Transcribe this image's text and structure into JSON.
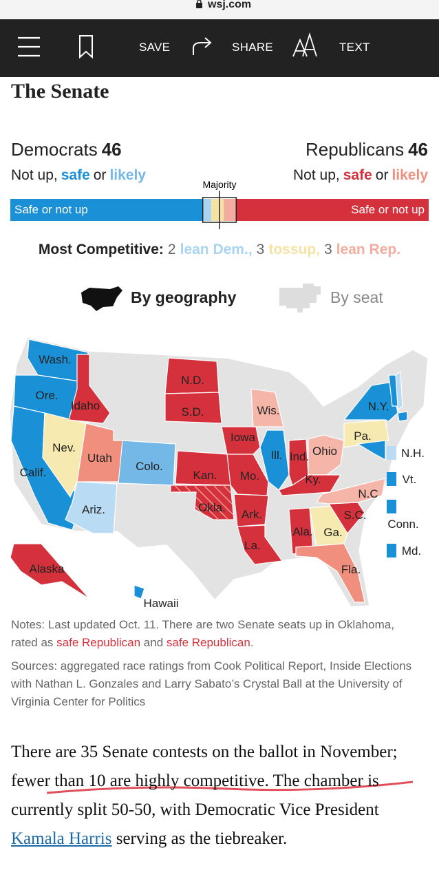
{
  "browser": {
    "url": "wsj.com"
  },
  "nav": {
    "items": [
      "SAVE",
      "SHARE",
      "TEXT"
    ]
  },
  "title": "The Senate",
  "header": {
    "democrats": {
      "name": "Democrats",
      "count": 46,
      "color": "#1a90d6",
      "status": [
        {
          "text": "Not up,"
        },
        {
          "text": "safe",
          "color": "#1a90d6"
        },
        {
          "text": "or"
        },
        {
          "text": "likely",
          "color": "#74b8e8"
        }
      ]
    },
    "republicans": {
      "name": "Republicans",
      "count": 46,
      "color": "#d4313c",
      "status": [
        {
          "text": "Not up,"
        },
        {
          "text": "safe",
          "color": "#d4313c"
        },
        {
          "text": "or"
        },
        {
          "text": "likely",
          "color": "#f08f7e"
        }
      ]
    }
  },
  "seat_bar": {
    "majority_label": "Majority",
    "left_label": "Safe or not up",
    "right_label": "Safe or not up"
  },
  "competitive": {
    "label": "Most Competitive:",
    "items": [
      {
        "count": 2,
        "text": "lean Dem.,",
        "color": "#a9d4f1"
      },
      {
        "count": 3,
        "text": "tossup,",
        "color": "#f4e3a2"
      },
      {
        "count": 3,
        "text": "lean Rep.",
        "color": "#f3ad9e"
      }
    ]
  },
  "view_toggle": {
    "options": [
      "By geography",
      "By seat"
    ],
    "selected": 0
  },
  "map": {
    "states": [
      {
        "label": "Wash.",
        "color": "#1a90d6"
      },
      {
        "label": "Ore.",
        "color": "#1a90d6"
      },
      {
        "label": "Calif.",
        "color": "#1a90d6"
      },
      {
        "label": "Nev.",
        "color": "#f7eab0"
      },
      {
        "label": "Idaho",
        "color": "#d4313c"
      },
      {
        "label": "Utah",
        "color": "#f08f7e"
      },
      {
        "label": "Ariz.",
        "color": "#b9dbf3"
      },
      {
        "label": "Colo.",
        "color": "#74b8e8"
      },
      {
        "label": "N.D.",
        "color": "#d4313c"
      },
      {
        "label": "S.D.",
        "color": "#d4313c"
      },
      {
        "label": "Kan.",
        "color": "#d4313c"
      },
      {
        "label": "Okla.",
        "color": "#d4313c",
        "hatched": true
      },
      {
        "label": "Iowa",
        "color": "#d4313c"
      },
      {
        "label": "Mo.",
        "color": "#d4313c"
      },
      {
        "label": "Ark.",
        "color": "#d4313c"
      },
      {
        "label": "La.",
        "color": "#d4313c"
      },
      {
        "label": "Ill.",
        "color": "#1a90d6"
      },
      {
        "label": "Wis.",
        "color": "#f5b5a8"
      },
      {
        "label": "Ind.",
        "color": "#d4313c"
      },
      {
        "label": "Ohio",
        "color": "#f5b5a8"
      },
      {
        "label": "Ky.",
        "color": "#d4313c"
      },
      {
        "label": "Ala.",
        "color": "#d4313c"
      },
      {
        "label": "Ga.",
        "color": "#f7eab0"
      },
      {
        "label": "S.C.",
        "color": "#d4313c"
      },
      {
        "label": "N.C",
        "color": "#f5b5a8"
      },
      {
        "label": "Fla.",
        "color": "#f08f7e"
      },
      {
        "label": "Pa.",
        "color": "#f7eab0"
      },
      {
        "label": "N.Y.",
        "color": "#1a90d6"
      },
      {
        "label": "N.H.",
        "color": "#b9dbf3"
      },
      {
        "label": "Vt.",
        "color": "#1a90d6"
      },
      {
        "label": "Conn.",
        "color": "#1a90d6"
      },
      {
        "label": "Md.",
        "color": "#1a90d6"
      },
      {
        "label": "Alaska",
        "color": "#d4313c"
      },
      {
        "label": "Hawaii",
        "color": "#1a90d6"
      }
    ]
  },
  "notes": {
    "parts": [
      {
        "text": "Notes: Last updated Oct. 11. There are two Senate seats up in Oklahoma, rated as "
      },
      {
        "text": "safe Republican",
        "color": "#d4313c"
      },
      {
        "text": " and "
      },
      {
        "text": "safe Republican",
        "color": "#d4313c"
      },
      {
        "text": "."
      }
    ]
  },
  "sources": "Sources: aggregated race ratings from Cook Political Report, Inside Elections with Nathan L. Gonzales and Larry Sabato’s Crystal Ball at the University of Virginia Center for Politics",
  "article": {
    "parts": [
      {
        "text": "There are 35 Senate contests on the ballot in November; fewer than 10 are highly competitive. The chamber is currently split 50-50, with Democratic Vice President "
      },
      {
        "text": "Kamala Harris",
        "link": true
      },
      {
        "text": " serving as the tiebreaker."
      }
    ]
  }
}
